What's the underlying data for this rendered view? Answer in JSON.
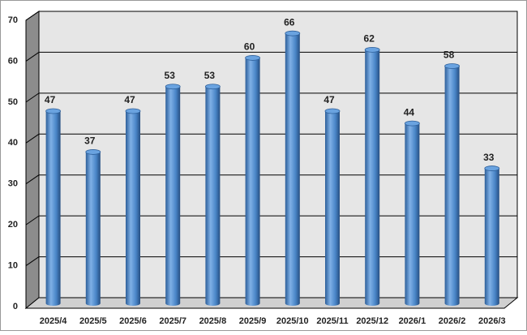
{
  "chart_data": {
    "type": "bar",
    "categories": [
      "2025/4",
      "2025/5",
      "2025/6",
      "2025/7",
      "2025/8",
      "2025/9",
      "2025/10",
      "2025/11",
      "2025/12",
      "2026/1",
      "2026/2",
      "2026/3"
    ],
    "values": [
      47,
      37,
      47,
      53,
      53,
      60,
      66,
      47,
      62,
      44,
      58,
      33
    ],
    "color": "#4a86c8",
    "ylim": [
      0,
      70
    ],
    "yticks": [
      0,
      10,
      20,
      30,
      40,
      50,
      60,
      70
    ],
    "grid": true
  }
}
